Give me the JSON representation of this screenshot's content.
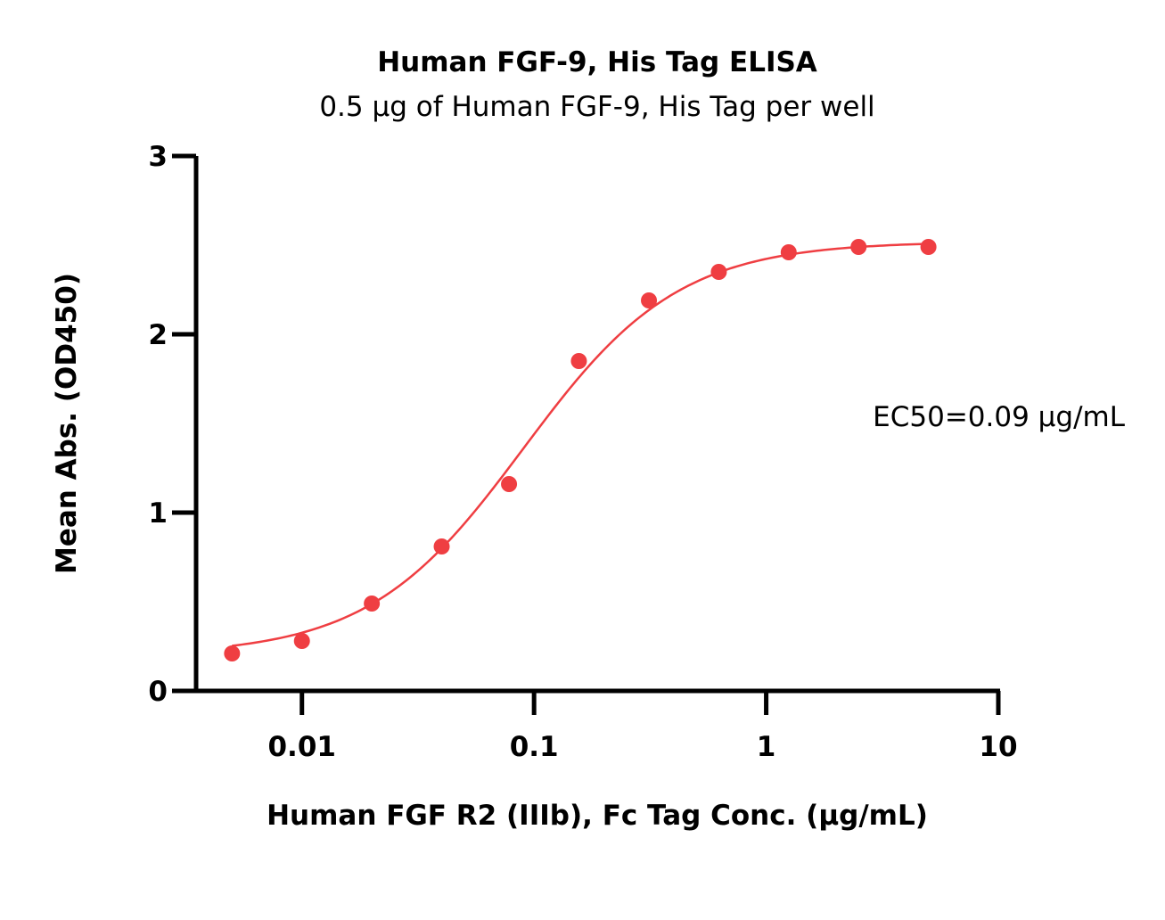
{
  "chart_data": {
    "type": "scatter",
    "title": "Human FGF-9, His Tag ELISA",
    "subtitle": "0.5 µg of Human FGF-9, His Tag per well",
    "xlabel": "Human FGF R2 (IIIb), Fc Tag Conc. (µg/mL)",
    "ylabel": "Mean Abs. (OD450)",
    "x_scale": "log",
    "xlim": [
      0.0035,
      10
    ],
    "ylim": [
      0,
      3
    ],
    "x_ticks": [
      {
        "value": 0.01,
        "label": "0.01"
      },
      {
        "value": 0.1,
        "label": "0.1"
      },
      {
        "value": 1,
        "label": "1"
      },
      {
        "value": 10,
        "label": "10"
      }
    ],
    "y_ticks": [
      {
        "value": 0,
        "label": "0"
      },
      {
        "value": 1,
        "label": "1"
      },
      {
        "value": 2,
        "label": "2"
      },
      {
        "value": 3,
        "label": "3"
      }
    ],
    "grid": false,
    "annotation": "EC50=0.09 µg/mL",
    "color": "#ef3e42",
    "series": [
      {
        "x": [
          0.005,
          0.01,
          0.02,
          0.04,
          0.078,
          0.156,
          0.3125,
          0.625,
          1.25,
          2.5,
          5
        ],
        "y": [
          0.21,
          0.28,
          0.49,
          0.81,
          1.16,
          1.85,
          2.19,
          2.35,
          2.46,
          2.49,
          2.49
        ]
      }
    ],
    "fit": {
      "model": "4PL",
      "bottom": 0.2,
      "top": 2.52,
      "ec50": 0.09,
      "hill": 1.3
    }
  }
}
